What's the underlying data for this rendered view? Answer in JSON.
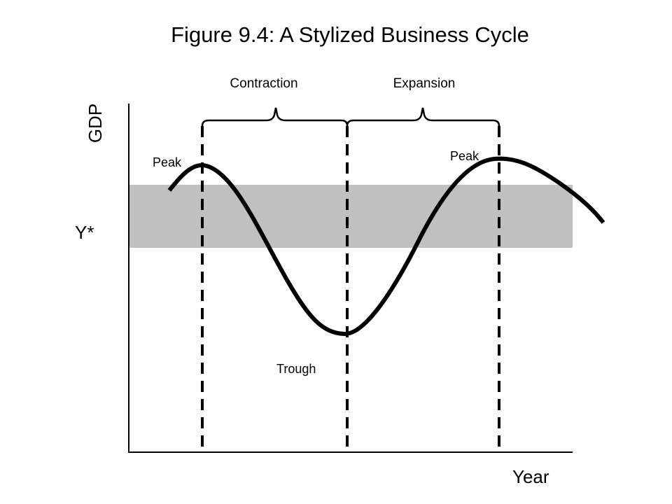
{
  "title": "Figure 9.4: A Stylized Business Cycle",
  "axes": {
    "y_label": "GDP",
    "x_label": "Year",
    "potential_label": "Y*"
  },
  "phases": {
    "contraction": "Contraction",
    "expansion": "Expansion"
  },
  "points": {
    "peak_1": "Peak",
    "peak_2": "Peak",
    "trough": "Trough"
  },
  "colors": {
    "band": "#c0c0c0",
    "ink": "#000000",
    "background": "#ffffff"
  }
}
